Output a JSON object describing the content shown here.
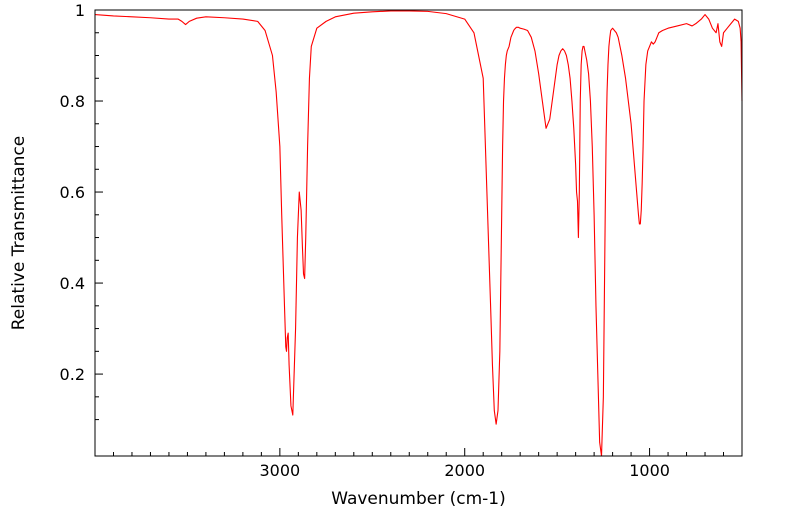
{
  "chart_data": {
    "type": "line",
    "title": "",
    "xlabel": "Wavenumber (cm-1)",
    "ylabel": "Relative Transmittance",
    "x_reversed": true,
    "xlim": [
      4000,
      500
    ],
    "ylim": [
      0.02,
      1.0
    ],
    "x_ticks": [
      3000,
      2000,
      1000
    ],
    "x_tick_labels": [
      "3000",
      "2000",
      "1000"
    ],
    "y_ticks": [
      0.2,
      0.4,
      0.6,
      0.8,
      1.0
    ],
    "y_tick_labels": [
      "0.2",
      "0.4",
      "0.6",
      "0.8",
      "1"
    ],
    "grid": false,
    "legend": "none",
    "line_color": "#ff0000",
    "series": [
      {
        "x": [
          4000,
          3900,
          3800,
          3700,
          3600,
          3550,
          3530,
          3510,
          3490,
          3450,
          3400,
          3300,
          3200,
          3120,
          3080,
          3040,
          3020,
          3000,
          2990,
          2975,
          2968,
          2964,
          2960,
          2955,
          2950,
          2940,
          2930,
          2915,
          2905,
          2895,
          2885,
          2878,
          2872,
          2866,
          2860,
          2850,
          2840,
          2830,
          2800,
          2750,
          2700,
          2600,
          2500,
          2400,
          2300,
          2200,
          2100,
          2000,
          1950,
          1900,
          1880,
          1860,
          1850,
          1840,
          1830,
          1820,
          1810,
          1805,
          1800,
          1795,
          1790,
          1785,
          1780,
          1775,
          1770,
          1765,
          1760,
          1755,
          1750,
          1745,
          1740,
          1735,
          1730,
          1725,
          1720,
          1710,
          1700,
          1680,
          1660,
          1640,
          1620,
          1600,
          1580,
          1560,
          1540,
          1520,
          1500,
          1490,
          1480,
          1470,
          1460,
          1450,
          1440,
          1430,
          1420,
          1410,
          1400,
          1395,
          1390,
          1385,
          1380,
          1375,
          1370,
          1365,
          1360,
          1355,
          1350,
          1340,
          1330,
          1320,
          1310,
          1300,
          1290,
          1280,
          1270,
          1260,
          1250,
          1245,
          1240,
          1235,
          1230,
          1225,
          1220,
          1215,
          1210,
          1200,
          1190,
          1180,
          1170,
          1160,
          1150,
          1130,
          1100,
          1080,
          1070,
          1060,
          1055,
          1050,
          1045,
          1040,
          1035,
          1030,
          1020,
          1010,
          1000,
          990,
          980,
          970,
          960,
          950,
          930,
          900,
          850,
          800,
          770,
          750,
          720,
          700,
          680,
          660,
          640,
          630,
          620,
          610,
          600,
          580,
          560,
          540,
          520,
          510,
          505,
          500
        ],
        "y": [
          0.99,
          0.987,
          0.985,
          0.983,
          0.98,
          0.98,
          0.975,
          0.968,
          0.975,
          0.982,
          0.985,
          0.983,
          0.98,
          0.975,
          0.955,
          0.9,
          0.82,
          0.7,
          0.55,
          0.35,
          0.26,
          0.25,
          0.28,
          0.29,
          0.22,
          0.13,
          0.11,
          0.3,
          0.5,
          0.6,
          0.56,
          0.48,
          0.42,
          0.41,
          0.5,
          0.7,
          0.85,
          0.92,
          0.96,
          0.975,
          0.985,
          0.993,
          0.996,
          0.998,
          0.998,
          0.997,
          0.992,
          0.98,
          0.95,
          0.85,
          0.6,
          0.35,
          0.22,
          0.12,
          0.09,
          0.12,
          0.25,
          0.4,
          0.55,
          0.7,
          0.8,
          0.85,
          0.88,
          0.9,
          0.91,
          0.915,
          0.92,
          0.93,
          0.94,
          0.945,
          0.95,
          0.955,
          0.958,
          0.96,
          0.962,
          0.962,
          0.96,
          0.958,
          0.955,
          0.94,
          0.91,
          0.86,
          0.8,
          0.74,
          0.76,
          0.82,
          0.88,
          0.9,
          0.91,
          0.915,
          0.91,
          0.9,
          0.88,
          0.85,
          0.8,
          0.74,
          0.66,
          0.6,
          0.58,
          0.5,
          0.6,
          0.8,
          0.88,
          0.91,
          0.92,
          0.92,
          0.91,
          0.89,
          0.86,
          0.8,
          0.7,
          0.55,
          0.35,
          0.2,
          0.05,
          0.02,
          0.15,
          0.35,
          0.55,
          0.72,
          0.82,
          0.88,
          0.92,
          0.94,
          0.955,
          0.96,
          0.955,
          0.95,
          0.94,
          0.92,
          0.9,
          0.85,
          0.75,
          0.65,
          0.6,
          0.55,
          0.53,
          0.53,
          0.56,
          0.62,
          0.7,
          0.8,
          0.88,
          0.91,
          0.92,
          0.93,
          0.925,
          0.93,
          0.94,
          0.95,
          0.955,
          0.96,
          0.965,
          0.97,
          0.965,
          0.97,
          0.98,
          0.99,
          0.98,
          0.96,
          0.95,
          0.97,
          0.93,
          0.92,
          0.95,
          0.96,
          0.97,
          0.98,
          0.975,
          0.96,
          0.93,
          0.8
        ]
      }
    ]
  }
}
